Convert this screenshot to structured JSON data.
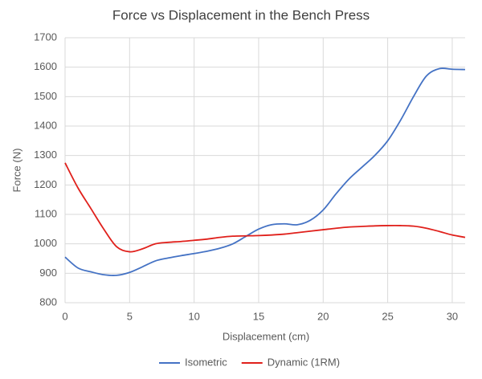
{
  "chart_data": {
    "type": "line",
    "title": "Force vs Displacement in the Bench Press",
    "x_label": "Displacement (cm)",
    "y_label": "Force (N)",
    "x": [
      0,
      1,
      2,
      3,
      4,
      5,
      6,
      7,
      8,
      9,
      10,
      11,
      12,
      13,
      14,
      15,
      16,
      17,
      18,
      19,
      20,
      21,
      22,
      23,
      24,
      25,
      26,
      27,
      28,
      29,
      30,
      31
    ],
    "series": [
      {
        "name": "Isometric",
        "color": "#4472c4",
        "values": [
          955,
          918,
          905,
          895,
          893,
          903,
          922,
          942,
          952,
          960,
          967,
          975,
          985,
          1000,
          1025,
          1050,
          1065,
          1068,
          1065,
          1080,
          1115,
          1170,
          1220,
          1260,
          1300,
          1350,
          1420,
          1500,
          1570,
          1595,
          1593,
          1592
        ]
      },
      {
        "name": "Dynamic (1RM)",
        "color": "#e0201b",
        "values": [
          1275,
          1190,
          1120,
          1050,
          990,
          973,
          983,
          1000,
          1005,
          1008,
          1012,
          1016,
          1022,
          1026,
          1027,
          1028,
          1030,
          1033,
          1038,
          1043,
          1048,
          1053,
          1057,
          1059,
          1061,
          1062,
          1062,
          1060,
          1053,
          1042,
          1030,
          1022
        ]
      }
    ],
    "xlim": [
      0,
      31
    ],
    "xticks": [
      0,
      5,
      10,
      15,
      20,
      25,
      30
    ],
    "ylim": [
      800,
      1700
    ],
    "yticks": [
      800,
      900,
      1000,
      1100,
      1200,
      1300,
      1400,
      1500,
      1600,
      1700
    ],
    "grid": true,
    "legend": "bottom"
  }
}
